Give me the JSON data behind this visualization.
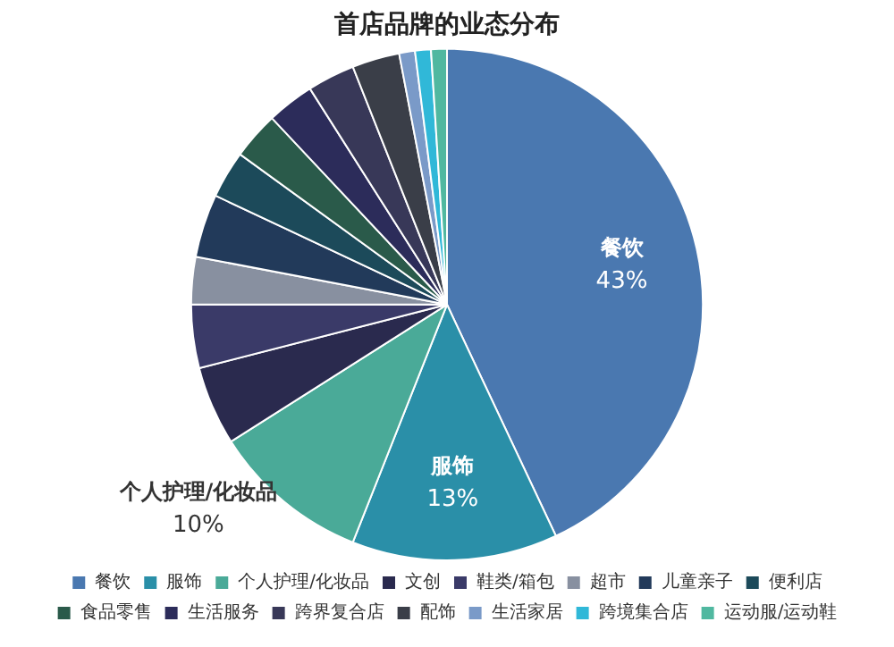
{
  "chart_data": {
    "type": "pie",
    "title": "首店品牌的业态分布",
    "categories": [
      "餐饮",
      "服饰",
      "个人护理/化妆品",
      "文创",
      "鞋类/箱包",
      "超市",
      "儿童亲子",
      "便利店",
      "食品零售",
      "生活服务",
      "跨界复合店",
      "配饰",
      "生活家居",
      "跨境集合店",
      "运动服/运动鞋"
    ],
    "values": [
      43,
      13,
      10,
      5,
      4,
      3,
      4,
      3,
      3,
      3,
      3,
      3,
      1,
      1,
      1
    ],
    "colors": [
      "#4a78b0",
      "#2a8fa8",
      "#4aaa98",
      "#2a2a4e",
      "#3a3a68",
      "#8890a0",
      "#223a5a",
      "#1c4a5a",
      "#2a5a4a",
      "#2c2c5a",
      "#383858",
      "#3a3e48",
      "#7a9ac8",
      "#30b8d8",
      "#50b8a0"
    ],
    "value_labels": [
      "43%",
      "13%",
      "10%",
      null,
      null,
      null,
      null,
      null,
      null,
      null,
      null,
      null,
      null,
      null,
      null
    ],
    "legend": "bottom"
  }
}
